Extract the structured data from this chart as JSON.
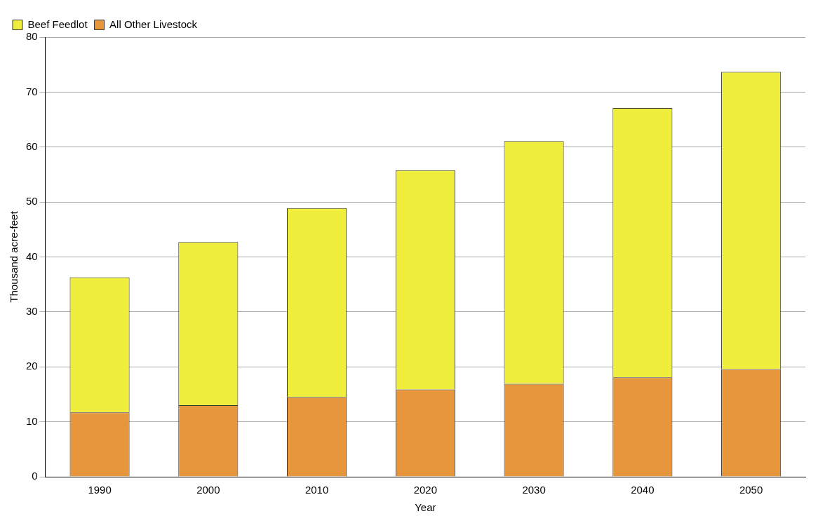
{
  "chart_data": {
    "type": "bar",
    "xlabel": "Year",
    "ylabel": "Thousand acre-feet",
    "categories": [
      "1990",
      "2000",
      "2010",
      "2020",
      "2030",
      "2040",
      "2050"
    ],
    "stacked": true,
    "series": [
      {
        "name": "All Other Livestock",
        "color": "#e8963c",
        "values": [
          11.7,
          13.0,
          14.5,
          15.9,
          16.9,
          18.1,
          19.6
        ]
      },
      {
        "name": "Beef Feedlot",
        "color": "#f0ee3c",
        "values": [
          24.6,
          29.7,
          34.4,
          39.9,
          44.2,
          49.0,
          54.1
        ]
      }
    ],
    "ylim": [
      0,
      80
    ],
    "yticks": [
      0,
      10,
      20,
      30,
      40,
      50,
      60,
      70,
      80
    ],
    "grid": "y",
    "legend": "top left"
  }
}
